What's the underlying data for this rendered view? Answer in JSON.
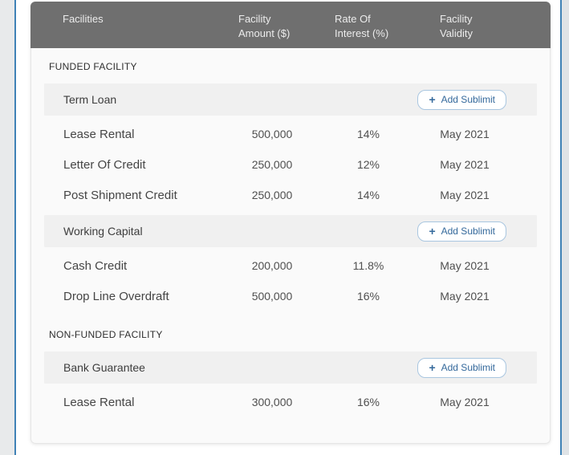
{
  "colors": {
    "header_bg": "#6f6f6f",
    "panel_bg": "#fafafa",
    "group_row_bg": "#f0f0f0",
    "frame_accent_blue": "#3f82b6",
    "button_text_blue": "#33689b",
    "button_border_blue": "#a9c6e0"
  },
  "buttons": {
    "plus_glyph": "+",
    "add_sublimit": "Add Sublimit"
  },
  "table": {
    "columns": [
      "Facilities",
      "Facility Amount ($)",
      "Rate Of Interest (%)",
      "Facility Validity"
    ],
    "sections": [
      {
        "label": "FUNDED FACILITY",
        "groups": [
          {
            "name": "Term Loan",
            "rows": [
              {
                "name": "Lease Rental",
                "amount": "500,000",
                "rate": "14%",
                "validity": "May 2021"
              },
              {
                "name": "Letter Of Credit",
                "amount": "250,000",
                "rate": "12%",
                "validity": "May 2021"
              },
              {
                "name": "Post Shipment Credit",
                "amount": "250,000",
                "rate": "14%",
                "validity": "May 2021"
              }
            ]
          },
          {
            "name": "Working Capital",
            "rows": [
              {
                "name": "Cash Credit",
                "amount": "200,000",
                "rate": "11.8%",
                "validity": "May 2021"
              },
              {
                "name": "Drop Line Overdraft",
                "amount": "500,000",
                "rate": "16%",
                "validity": "May 2021"
              }
            ]
          }
        ]
      },
      {
        "label": "NON-FUNDED FACILITY",
        "groups": [
          {
            "name": "Bank Guarantee",
            "rows": [
              {
                "name": "Lease Rental",
                "amount": "300,000",
                "rate": "16%",
                "validity": "May 2021"
              }
            ]
          }
        ]
      }
    ]
  }
}
